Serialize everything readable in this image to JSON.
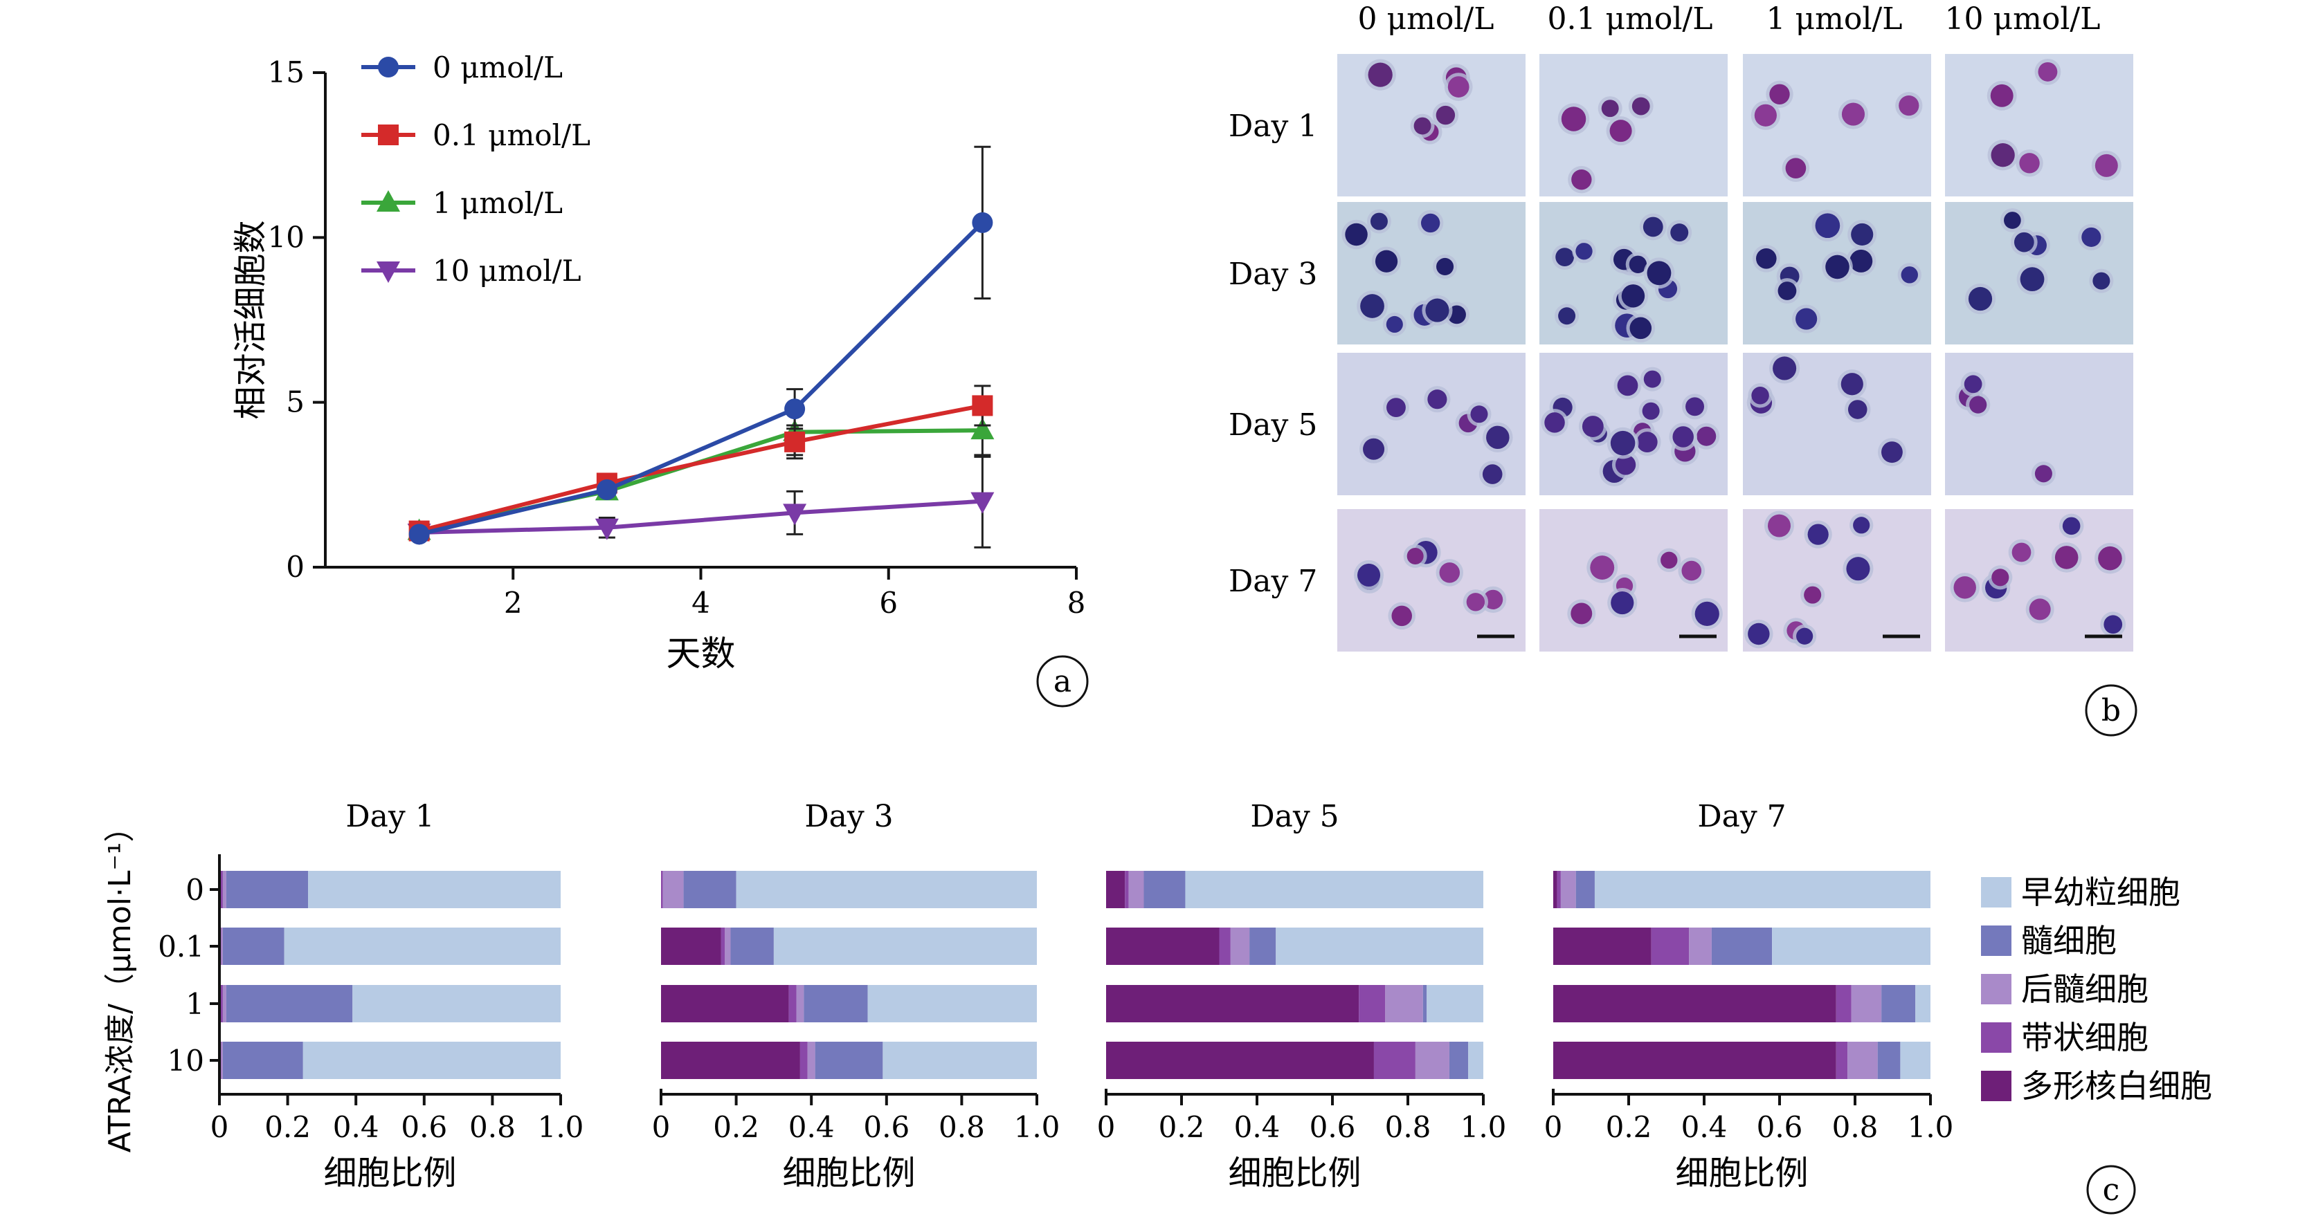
{
  "panel_labels": {
    "a": "a",
    "b": "b",
    "c": "c"
  },
  "colors": {
    "s0": "#2b4aa6",
    "s01": "#d42a2a",
    "s1": "#3aa63a",
    "s10": "#7a3aa6",
    "promyelocyte": "#b7cbe4",
    "myelocyte": "#7479bc",
    "metamyelocyte": "#a98ac9",
    "band": "#8a48a8",
    "segmented": "#6e1f78",
    "micro_bg": "#c9d3e6",
    "cell_dark": "#2c2a78",
    "cell_purple": "#7a2a85"
  },
  "chart_data": [
    {
      "type": "line",
      "panel": "a",
      "xlabel": "天数",
      "ylabel": "相对活细胞数",
      "xlim": [
        0,
        8
      ],
      "ylim": [
        0,
        15
      ],
      "xticks": [
        "2",
        "4",
        "6",
        "8"
      ],
      "yticks": [
        "0",
        "5",
        "10",
        "15"
      ],
      "x": [
        1,
        3,
        5,
        7
      ],
      "legend_position": "top-left",
      "series": [
        {
          "name": "0 μmol/L",
          "marker": "circle",
          "values": [
            1.0,
            2.35,
            4.8,
            10.45
          ],
          "errors": [
            0.05,
            0.15,
            0.6,
            2.3
          ]
        },
        {
          "name": "0.1 μmol/L",
          "marker": "square",
          "values": [
            1.1,
            2.55,
            3.8,
            4.9
          ],
          "errors": [
            0.05,
            0.1,
            0.5,
            0.6
          ]
        },
        {
          "name": "1 μmol/L",
          "marker": "triangle-up",
          "values": [
            1.1,
            2.3,
            4.1,
            4.15
          ],
          "errors": [
            0.05,
            0.1,
            0.7,
            0.8
          ]
        },
        {
          "name": "10 μmol/L",
          "marker": "triangle-down",
          "values": [
            1.05,
            1.2,
            1.65,
            2.0
          ],
          "errors": [
            0.05,
            0.3,
            0.65,
            1.4
          ]
        }
      ]
    },
    {
      "type": "bar",
      "orientation": "horizontal-stacked",
      "panel": "c",
      "ylabel": "ATRA浓度/（μmol·L⁻¹）",
      "categories": [
        "0",
        "0.1",
        "1",
        "10"
      ],
      "xlim": [
        0,
        1.0
      ],
      "xticks": [
        "0",
        "0.2",
        "0.4",
        "0.6",
        "0.8",
        "1.0"
      ],
      "legend_position": "right",
      "legend": [
        "早幼粒细胞",
        "髓细胞",
        "后髓细胞",
        "带状细胞",
        "多形核白细胞"
      ],
      "subplots": [
        {
          "title": "Day 1",
          "xlabel": "细胞比例",
          "series": [
            {
              "name": "多形核白细胞",
              "values": [
                0,
                0,
                0,
                0
              ]
            },
            {
              "name": "带状细胞",
              "values": [
                0.01,
                0.005,
                0.01,
                0.005
              ]
            },
            {
              "name": "后髓细胞",
              "values": [
                0.01,
                0.005,
                0.01,
                0.005
              ]
            },
            {
              "name": "髓细胞",
              "values": [
                0.24,
                0.18,
                0.37,
                0.235
              ]
            },
            {
              "name": "早幼粒细胞",
              "values": [
                0.74,
                0.81,
                0.61,
                0.755
              ]
            }
          ]
        },
        {
          "title": "Day 3",
          "xlabel": "细胞比例",
          "series": [
            {
              "name": "多形核白细胞",
              "values": [
                0,
                0.16,
                0.34,
                0.37
              ]
            },
            {
              "name": "带状细胞",
              "values": [
                0.005,
                0.01,
                0.02,
                0.02
              ]
            },
            {
              "name": "后髓细胞",
              "values": [
                0.055,
                0.015,
                0.02,
                0.02
              ]
            },
            {
              "name": "髓细胞",
              "values": [
                0.14,
                0.115,
                0.17,
                0.18
              ]
            },
            {
              "name": "早幼粒细胞",
              "values": [
                0.8,
                0.7,
                0.45,
                0.41
              ]
            }
          ]
        },
        {
          "title": "Day 5",
          "xlabel": "细胞比例",
          "series": [
            {
              "name": "多形核白细胞",
              "values": [
                0.05,
                0.3,
                0.67,
                0.71
              ]
            },
            {
              "name": "带状细胞",
              "values": [
                0.01,
                0.03,
                0.07,
                0.11
              ]
            },
            {
              "name": "后髓细胞",
              "values": [
                0.04,
                0.05,
                0.1,
                0.09
              ]
            },
            {
              "name": "髓细胞",
              "values": [
                0.11,
                0.07,
                0.01,
                0.05
              ]
            },
            {
              "name": "早幼粒细胞",
              "values": [
                0.79,
                0.55,
                0.15,
                0.04
              ]
            }
          ]
        },
        {
          "title": "Day 7",
          "xlabel": "细胞比例",
          "series": [
            {
              "name": "多形核白细胞",
              "values": [
                0.01,
                0.26,
                0.75,
                0.75
              ]
            },
            {
              "name": "带状细胞",
              "values": [
                0.01,
                0.1,
                0.04,
                0.03
              ]
            },
            {
              "name": "后髓细胞",
              "values": [
                0.04,
                0.06,
                0.08,
                0.08
              ]
            },
            {
              "name": "髓细胞",
              "values": [
                0.05,
                0.16,
                0.09,
                0.06
              ]
            },
            {
              "name": "早幼粒细胞",
              "values": [
                0.89,
                0.42,
                0.04,
                0.08
              ]
            }
          ]
        }
      ]
    }
  ],
  "micrographs": {
    "panel": "b",
    "columns": [
      "0 μmol/L",
      "0.1 μmol/L",
      "1 μmol/L",
      "10 μmol/L"
    ],
    "rows": [
      "Day 1",
      "Day 3",
      "Day 5",
      "Day 7"
    ]
  }
}
